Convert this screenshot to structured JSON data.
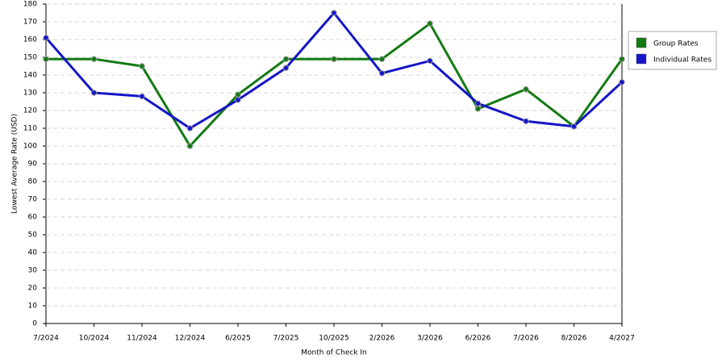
{
  "chart_data": {
    "type": "line",
    "x_label": "Month of Check In",
    "y_label": "Lowest Average Rate (USD)",
    "categories": [
      "7/2024",
      "10/2024",
      "11/2024",
      "12/2024",
      "6/2025",
      "7/2025",
      "10/2025",
      "2/2026",
      "3/2026",
      "6/2026",
      "7/2026",
      "8/2026",
      "4/2027"
    ],
    "series": [
      {
        "name": "Group Rates",
        "color": "#137a13",
        "values": [
          149,
          149,
          145,
          100,
          129,
          149,
          149,
          149,
          169,
          121,
          132,
          111,
          149
        ]
      },
      {
        "name": "Individual Rates",
        "color": "#1515c8",
        "values": [
          161,
          130,
          128,
          110,
          126,
          144,
          175,
          141,
          148,
          124,
          114,
          111,
          136
        ]
      }
    ],
    "ylim": [
      0,
      180
    ],
    "yticks": [
      0,
      10,
      20,
      30,
      40,
      50,
      60,
      70,
      80,
      90,
      100,
      110,
      120,
      130,
      140,
      150,
      160,
      170,
      180
    ],
    "grid": true,
    "legend": "right"
  }
}
